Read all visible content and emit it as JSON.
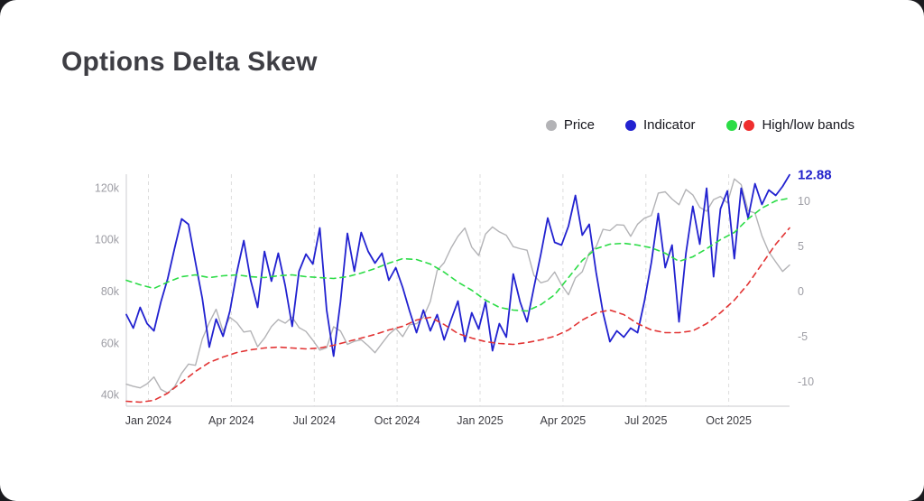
{
  "page": {
    "title": "Options Delta Skew"
  },
  "legend": {
    "items": [
      {
        "id": "price",
        "label": "Price",
        "dot_colors": [
          "#b3b3b6"
        ]
      },
      {
        "id": "indicator",
        "label": "Indicator",
        "dot_colors": [
          "#2222d0"
        ]
      },
      {
        "id": "bands",
        "label": "High/low bands",
        "dot_colors": [
          "#2bdc46",
          "#ef2e2e"
        ],
        "separator": "/"
      }
    ]
  },
  "chart_data": {
    "type": "line",
    "title": "Options Delta Skew",
    "x_unit": "months since Jan 2024",
    "x_range": [
      -0.8,
      23.2
    ],
    "x_ticks": [
      {
        "m": 0,
        "label": "Jan 2024"
      },
      {
        "m": 3,
        "label": "Apr 2024"
      },
      {
        "m": 6,
        "label": "Jul 2024"
      },
      {
        "m": 9,
        "label": "Oct 2024"
      },
      {
        "m": 12,
        "label": "Jan 2025"
      },
      {
        "m": 15,
        "label": "Apr 2025"
      },
      {
        "m": 18,
        "label": "Jul 2025"
      },
      {
        "m": 21,
        "label": "Oct 2025"
      }
    ],
    "left_axis": {
      "name": "price",
      "unit": "thousands",
      "range": [
        35.5,
        125.2
      ],
      "ticks": [
        {
          "v": 40,
          "label": "40k"
        },
        {
          "v": 60,
          "label": "60k"
        },
        {
          "v": 80,
          "label": "80k"
        },
        {
          "v": 100,
          "label": "100k"
        },
        {
          "v": 120,
          "label": "120k"
        }
      ]
    },
    "right_axis": {
      "name": "indicator",
      "range": [
        -12.75,
        12.95
      ],
      "ticks": [
        {
          "v": 10,
          "label": "10"
        },
        {
          "v": 5,
          "label": "5"
        },
        {
          "v": 0,
          "label": "0"
        },
        {
          "v": -5,
          "label": "-5"
        },
        {
          "v": -10,
          "label": "-10"
        }
      ]
    },
    "grid": "vertical-dashed",
    "legend_position": "top-right",
    "last_value_label": "12.88",
    "series": [
      {
        "name": "Price",
        "axis": "left",
        "color": "#b3b3b6",
        "style": "solid",
        "width": 1.4,
        "x_start": -0.8,
        "x_step": 0.25,
        "values": [
          44,
          43.2,
          42.6,
          44.2,
          46.8,
          42,
          40.6,
          43.1,
          48.2,
          51.8,
          51.3,
          61.5,
          67.8,
          73,
          64.5,
          69.9,
          67.8,
          64.2,
          64.6,
          58.5,
          61.8,
          66.3,
          69,
          67.6,
          69.9,
          65.9,
          64.4,
          61,
          57.2,
          58.1,
          66.2,
          64.6,
          59.4,
          60.6,
          61.2,
          58.9,
          56.2,
          59.8,
          63.2,
          65.6,
          62.4,
          67,
          67.4,
          69.9,
          76,
          88,
          91,
          96.6,
          101.2,
          104.4,
          97,
          93.8,
          102.1,
          104.8,
          102.9,
          101.6,
          97.2,
          96.4,
          95.8,
          86.1,
          83.2,
          84,
          87.4,
          82.4,
          78.6,
          85.1,
          87.5,
          94.7,
          97.1,
          103.9,
          103.4,
          105.7,
          105.5,
          101.2,
          105.9,
          108.2,
          109.3,
          117.9,
          118.4,
          115.6,
          113.4,
          119.3,
          117.2,
          112.4,
          110.9,
          115.4,
          116.6,
          114.1,
          123.4,
          121.2,
          111.1,
          110.2,
          101.4,
          95.2,
          91.3,
          87.6,
          90.1
        ]
      },
      {
        "name": "Indicator",
        "axis": "right",
        "color": "#2222d0",
        "style": "solid",
        "width": 1.8,
        "x_start": -0.8,
        "x_step": 0.25,
        "values": [
          -2.6,
          -4.1,
          -1.8,
          -3.6,
          -4.4,
          -1.2,
          1.4,
          4.8,
          8,
          7.4,
          3.2,
          -0.8,
          -6.2,
          -3.1,
          -5,
          -2.2,
          2.1,
          5.6,
          1.2,
          -1.8,
          4.4,
          1.1,
          4.2,
          0.6,
          -3.9,
          2.2,
          4.1,
          3,
          7,
          -2.1,
          -7.2,
          -1.2,
          6.4,
          2.2,
          6.5,
          4.4,
          3.1,
          4.2,
          1.2,
          2.6,
          0.4,
          -2.2,
          -4.6,
          -2.1,
          -4.4,
          -2.6,
          -5.4,
          -3.2,
          -1.1,
          -5.6,
          -2.4,
          -4.2,
          -1.2,
          -6.6,
          -3.6,
          -5.1,
          1.9,
          -1.2,
          -3.4,
          0.4,
          4.1,
          8.1,
          5.4,
          5.1,
          7.2,
          10.6,
          6.2,
          7.4,
          2.1,
          -2.4,
          -5.6,
          -4.4,
          -5.1,
          -4.1,
          -4.6,
          -1.1,
          3.2,
          8.6,
          2.6,
          5.1,
          -3.4,
          4.2,
          9.4,
          5.2,
          11.4,
          1.6,
          9.1,
          11.1,
          3.6,
          11.4,
          8.1,
          11.9,
          9.6,
          11.2,
          10.6,
          11.6,
          12.88
        ]
      },
      {
        "name": "High band",
        "axis": "right",
        "color": "#2bdc46",
        "style": "dashed",
        "width": 1.6,
        "x_start": -0.8,
        "x_step": 0.5,
        "values": [
          1.2,
          0.7,
          0.3,
          1,
          1.6,
          1.8,
          1.5,
          1.7,
          1.8,
          1.6,
          1.5,
          1.7,
          1.8,
          1.6,
          1.5,
          1.4,
          1.6,
          2,
          2.5,
          3.1,
          3.6,
          3.5,
          3,
          2.1,
          1,
          0.1,
          -1,
          -1.8,
          -2.1,
          -2.2,
          -1.5,
          -0.4,
          1.5,
          3.4,
          4.7,
          5.2,
          5.3,
          5.1,
          4.8,
          4.2,
          3.3,
          3.8,
          4.7,
          5.7,
          6.5,
          8,
          9.2,
          10,
          10.3
        ]
      },
      {
        "name": "Low band",
        "axis": "right",
        "color": "#e23434",
        "style": "dashed",
        "width": 1.6,
        "x_start": -0.8,
        "x_step": 0.5,
        "values": [
          -12.2,
          -12.3,
          -12.1,
          -11.3,
          -10.1,
          -8.9,
          -7.9,
          -7.3,
          -6.8,
          -6.5,
          -6.3,
          -6.2,
          -6.3,
          -6.4,
          -6.3,
          -6,
          -5.6,
          -5.2,
          -4.8,
          -4.3,
          -3.9,
          -3.2,
          -2.9,
          -3.7,
          -4.7,
          -5.2,
          -5.6,
          -5.8,
          -5.9,
          -5.7,
          -5.4,
          -5,
          -4.3,
          -3.2,
          -2.4,
          -2.1,
          -2.6,
          -3.6,
          -4.3,
          -4.6,
          -4.6,
          -4.4,
          -3.6,
          -2.4,
          -1,
          0.8,
          3,
          5.2,
          7
        ]
      }
    ]
  }
}
